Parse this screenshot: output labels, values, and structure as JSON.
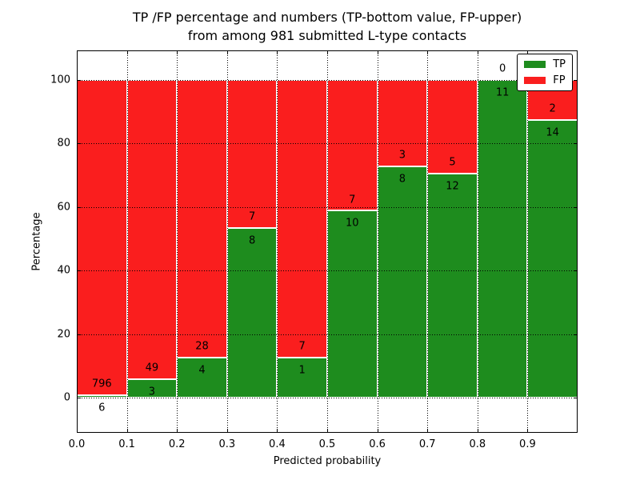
{
  "chart_data": {
    "type": "bar",
    "stacked": true,
    "normalized": "each bin scaled to 100%",
    "title_line1": "TP /FP percentage and numbers (TP-bottom value, FP-upper)",
    "title_line2": "from among 981 submitted L-type contacts",
    "total_submitted": 981,
    "xlabel": "Predicted probability",
    "ylabel": "Percentage",
    "bin_edges": [
      0.0,
      0.1,
      0.2,
      0.3,
      0.4,
      0.5,
      0.6,
      0.7,
      0.8,
      0.9,
      1.0
    ],
    "x_tick_labels": [
      "0.0",
      "0.1",
      "0.2",
      "0.3",
      "0.4",
      "0.5",
      "0.6",
      "0.7",
      "0.8",
      "0.9"
    ],
    "y_ticks": [
      0,
      20,
      40,
      60,
      80,
      100
    ],
    "y_tick_labels": [
      "0",
      "20",
      "40",
      "60",
      "80",
      "100"
    ],
    "xlim": [
      0.0,
      1.0
    ],
    "ylim": [
      -11,
      109
    ],
    "grid": "dotted both axes",
    "series": [
      {
        "name": "TP",
        "color": "#1e8c1e",
        "counts": [
          6,
          3,
          4,
          8,
          1,
          10,
          8,
          12,
          11,
          14
        ]
      },
      {
        "name": "FP",
        "color": "#fa1e1e",
        "counts": [
          796,
          49,
          28,
          7,
          7,
          7,
          3,
          5,
          0,
          2
        ]
      }
    ],
    "tp_percent_per_bin": [
      0.75,
      5.77,
      12.5,
      53.33,
      12.5,
      58.82,
      72.73,
      70.59,
      100.0,
      87.5
    ],
    "legend": {
      "position": "upper right",
      "entries": [
        "TP",
        "FP"
      ]
    }
  }
}
